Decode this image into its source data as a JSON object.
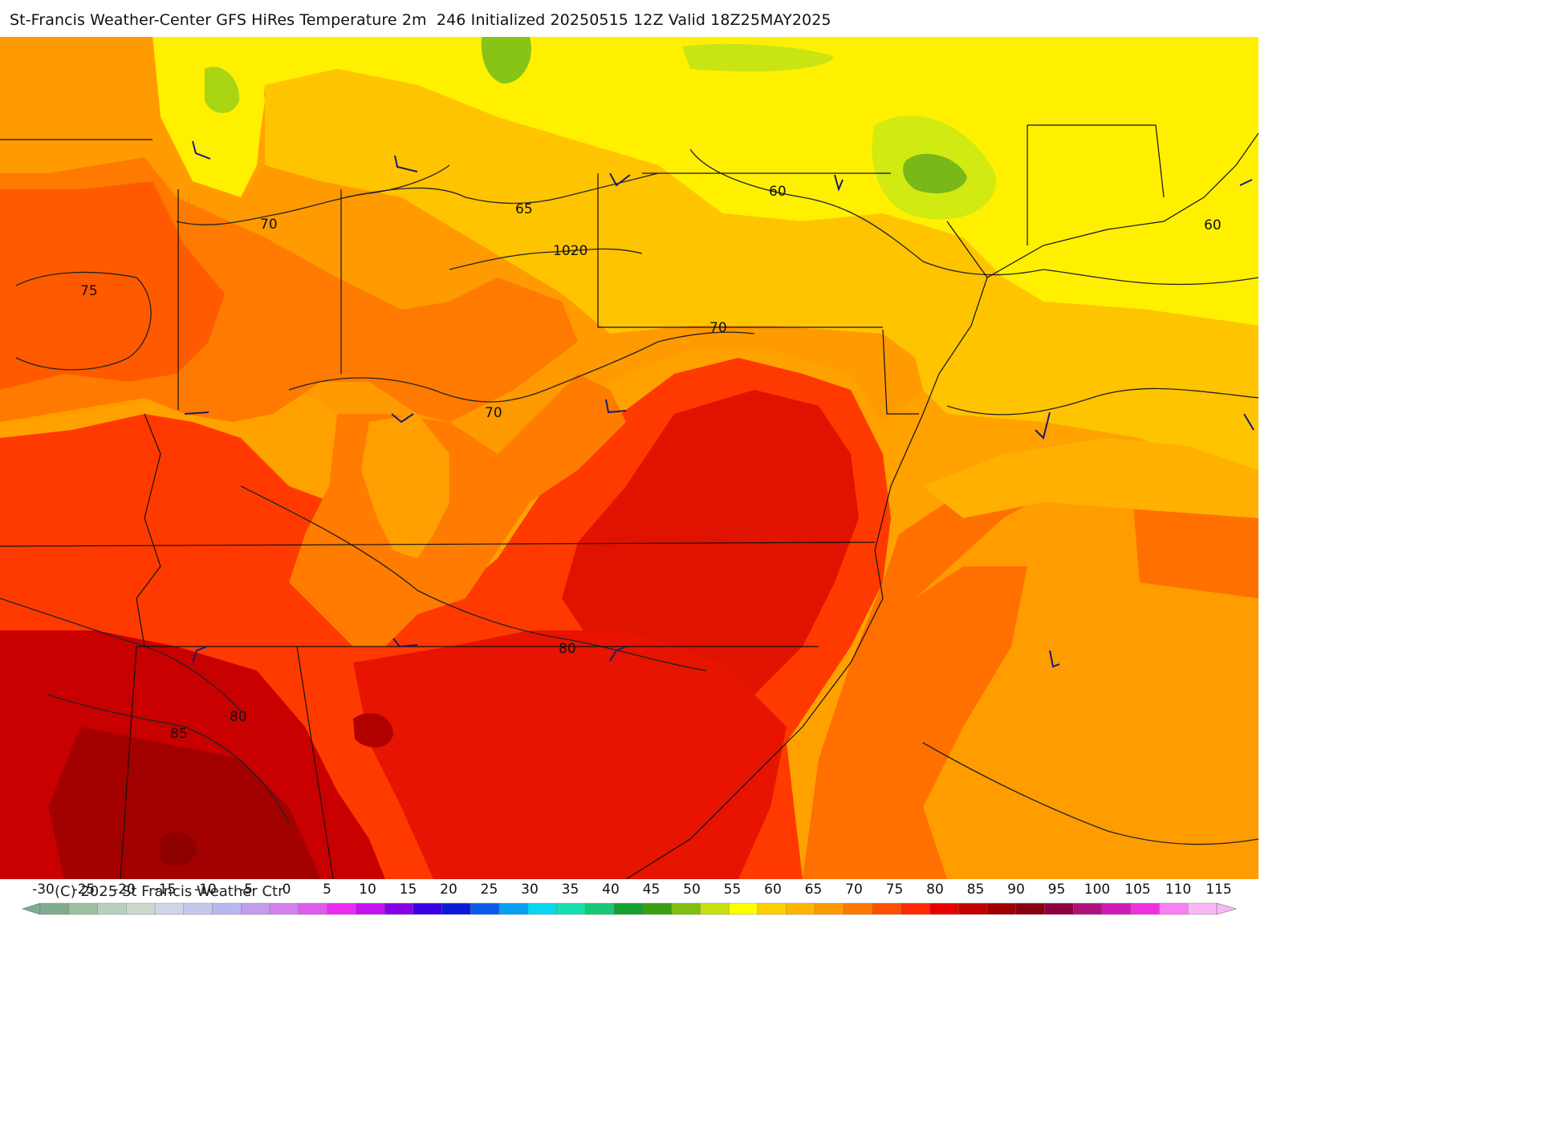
{
  "title": "St-Francis Weather-Center GFS HiRes Temperature 2m  246 Initialized 20250515 12Z Valid 18Z25MAY2025",
  "copyright": "(C) 2025 St Francis Weather Ctr",
  "palette": {
    "cold_green": "#6fb81a",
    "yellow_green": "#d8ec12",
    "yellow": "#fff000",
    "light_orange": "#ffc400",
    "orange": "#ffa200",
    "dark_orange": "#ff7a00",
    "red_orange": "#ff4e00",
    "red": "#f01c00",
    "dark_red": "#c80000",
    "deep_red": "#a50000",
    "contour_line": "#222222",
    "state_line": "#111111",
    "wind_barb": "#1a1a6e"
  },
  "isotherm_labels": [
    {
      "text": "70"
    },
    {
      "text": "65"
    },
    {
      "text": "75"
    },
    {
      "text": "1020"
    },
    {
      "text": "60"
    },
    {
      "text": "60"
    },
    {
      "text": "70"
    },
    {
      "text": "70"
    },
    {
      "text": "80"
    },
    {
      "text": "80"
    },
    {
      "text": "85"
    }
  ],
  "colorbar": {
    "unit_note": "",
    "ticks": [
      "-30",
      "-25",
      "-20",
      "-15",
      "-10",
      "-5",
      "0",
      "5",
      "10",
      "15",
      "20",
      "25",
      "30",
      "35",
      "40",
      "45",
      "50",
      "55",
      "60",
      "65",
      "70",
      "75",
      "80",
      "85",
      "90",
      "95",
      "100",
      "105",
      "110",
      "115"
    ],
    "colors": [
      "#7fae8e",
      "#9cbfa2",
      "#b7d0bc",
      "#c9d9ce",
      "#d0d4e6",
      "#c5c8ea",
      "#b7b8f0",
      "#c39cea",
      "#d580ef",
      "#e05bef",
      "#ec2cf4",
      "#c510f0",
      "#8800e6",
      "#3800e0",
      "#0a1cd8",
      "#0a5ce8",
      "#0aa0f0",
      "#09d8f2",
      "#17e0b0",
      "#18c878",
      "#12a030",
      "#3aa010",
      "#7ec010",
      "#c8e010",
      "#ffff00",
      "#ffd000",
      "#ffb400",
      "#ff9a00",
      "#ff7800",
      "#ff5000",
      "#ff2a00",
      "#e80000",
      "#c40000",
      "#a00000",
      "#880010",
      "#900040",
      "#b0107a",
      "#d018b8",
      "#f030e0",
      "#f880f0",
      "#f8b8f8"
    ]
  }
}
